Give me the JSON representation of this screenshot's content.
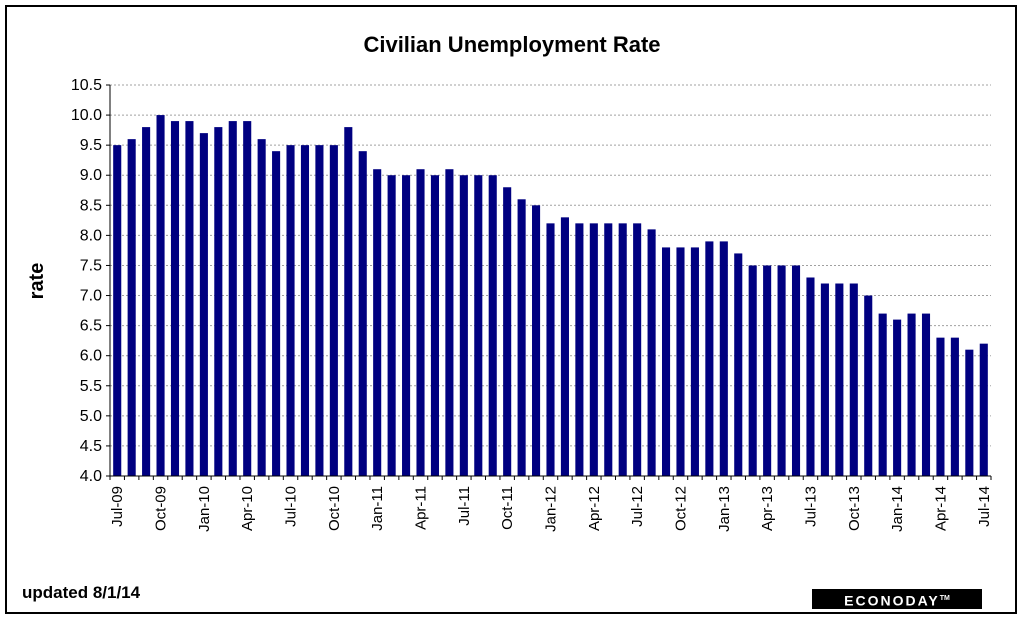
{
  "chart_data": {
    "type": "bar",
    "title": "Civilian Unemployment Rate",
    "xlabel": "",
    "ylabel": "rate",
    "ylim": [
      4.0,
      10.5
    ],
    "yticks": [
      "4.0",
      "4.5",
      "5.0",
      "5.5",
      "6.0",
      "6.5",
      "7.0",
      "7.5",
      "8.0",
      "8.5",
      "9.0",
      "9.5",
      "10.0",
      "10.5"
    ],
    "grid": true,
    "bar_color": "#000080",
    "categories": [
      "Jul-09",
      "Aug-09",
      "Sep-09",
      "Oct-09",
      "Nov-09",
      "Dec-09",
      "Jan-10",
      "Feb-10",
      "Mar-10",
      "Apr-10",
      "May-10",
      "Jun-10",
      "Jul-10",
      "Aug-10",
      "Sep-10",
      "Oct-10",
      "Nov-10",
      "Dec-10",
      "Jan-11",
      "Feb-11",
      "Mar-11",
      "Apr-11",
      "May-11",
      "Jun-11",
      "Jul-11",
      "Aug-11",
      "Sep-11",
      "Oct-11",
      "Nov-11",
      "Dec-11",
      "Jan-12",
      "Feb-12",
      "Mar-12",
      "Apr-12",
      "May-12",
      "Jun-12",
      "Jul-12",
      "Aug-12",
      "Sep-12",
      "Oct-12",
      "Nov-12",
      "Dec-12",
      "Jan-13",
      "Feb-13",
      "Mar-13",
      "Apr-13",
      "May-13",
      "Jun-13",
      "Jul-13",
      "Aug-13",
      "Sep-13",
      "Oct-13",
      "Nov-13",
      "Dec-13",
      "Jan-14",
      "Feb-14",
      "Mar-14",
      "Apr-14",
      "May-14",
      "Jun-14",
      "Jul-14"
    ],
    "visible_xticks": [
      "Jul-09",
      "Oct-09",
      "Jan-10",
      "Apr-10",
      "Jul-10",
      "Oct-10",
      "Jan-11",
      "Apr-11",
      "Jul-11",
      "Oct-11",
      "Jan-12",
      "Apr-12",
      "Jul-12",
      "Oct-12",
      "Jan-13",
      "Apr-13",
      "Jul-13",
      "Oct-13",
      "Jan-14",
      "Apr-14",
      "Jul-14"
    ],
    "values": [
      9.5,
      9.6,
      9.8,
      10.0,
      9.9,
      9.9,
      9.7,
      9.8,
      9.9,
      9.9,
      9.6,
      9.4,
      9.5,
      9.5,
      9.5,
      9.5,
      9.8,
      9.4,
      9.1,
      9.0,
      9.0,
      9.1,
      9.0,
      9.1,
      9.0,
      9.0,
      9.0,
      8.8,
      8.6,
      8.5,
      8.2,
      8.3,
      8.2,
      8.2,
      8.2,
      8.2,
      8.2,
      8.1,
      7.8,
      7.8,
      7.8,
      7.9,
      7.9,
      7.7,
      7.5,
      7.5,
      7.5,
      7.5,
      7.3,
      7.2,
      7.2,
      7.2,
      7.0,
      6.7,
      6.6,
      6.7,
      6.7,
      6.3,
      6.3,
      6.1,
      6.2
    ]
  },
  "footer": {
    "updated": "updated 8/1/14",
    "logo": "ECONODAY",
    "logo_mark": "TM"
  }
}
